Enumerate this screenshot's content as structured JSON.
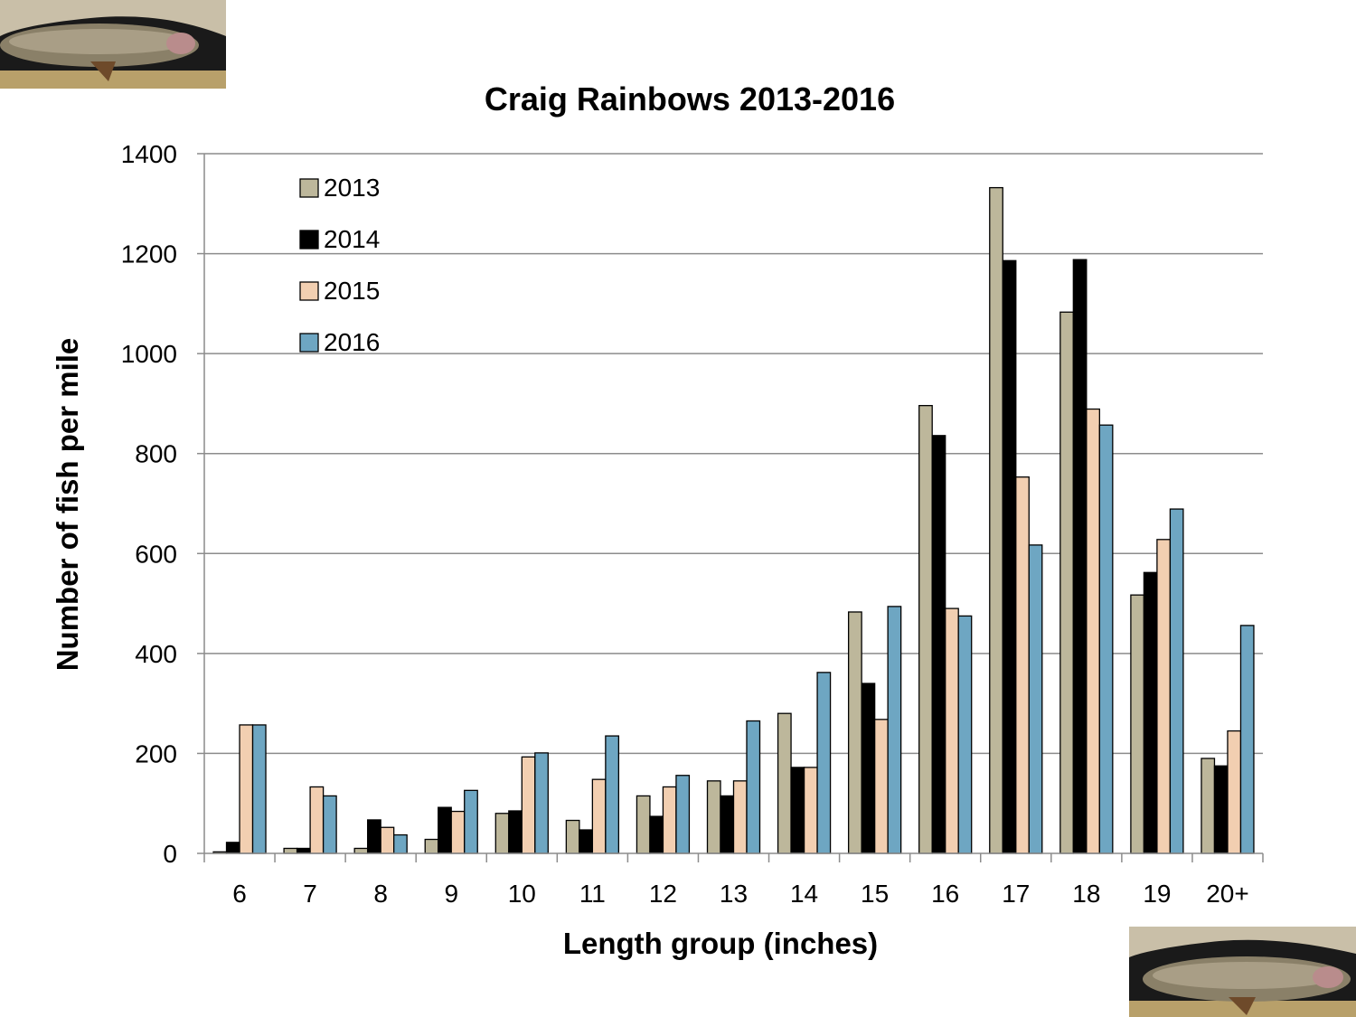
{
  "chart_data": {
    "type": "bar",
    "title": "Craig Rainbows 2013-2016",
    "xlabel": "Length group (inches)",
    "ylabel": "Number of fish per mile",
    "categories": [
      "6",
      "7",
      "8",
      "9",
      "10",
      "11",
      "12",
      "13",
      "14",
      "15",
      "16",
      "17",
      "18",
      "19",
      "20+"
    ],
    "ylim": [
      0,
      1400
    ],
    "yticks": [
      0,
      200,
      400,
      600,
      800,
      1000,
      1200,
      1400
    ],
    "grid": true,
    "legend_position": "top-left",
    "series": [
      {
        "name": "2013",
        "color": "#bdb79b",
        "values": [
          3,
          10,
          10,
          28,
          80,
          66,
          115,
          145,
          280,
          483,
          896,
          1332,
          1083,
          517,
          190
        ]
      },
      {
        "name": "2014",
        "color": "#000000",
        "values": [
          22,
          10,
          67,
          92,
          85,
          47,
          74,
          115,
          172,
          340,
          836,
          1186,
          1188,
          562,
          175
        ]
      },
      {
        "name": "2015",
        "color": "#f2cfb1",
        "values": [
          257,
          133,
          52,
          84,
          193,
          148,
          133,
          145,
          172,
          268,
          490,
          753,
          889,
          628,
          245
        ]
      },
      {
        "name": "2016",
        "color": "#6ea6c2",
        "values": [
          257,
          115,
          37,
          126,
          201,
          235,
          156,
          265,
          362,
          494,
          475,
          617,
          857,
          689,
          456
        ]
      }
    ]
  },
  "decor": {
    "photo_top_icon": "trout-photo-icon",
    "photo_bottom_icon": "trout-photo-icon"
  }
}
